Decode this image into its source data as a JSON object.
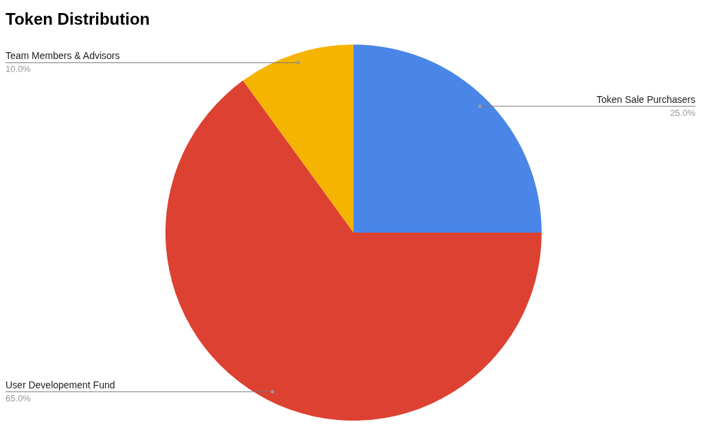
{
  "chart_data": {
    "type": "pie",
    "title": "Token Distribution",
    "categories": [
      "Token Sale Purchasers",
      "User Developement Fund",
      "Team Members & Advisors"
    ],
    "values": [
      25,
      65,
      10
    ],
    "colors": [
      "#4a86e8",
      "#dd4132",
      "#f5b400"
    ],
    "value_labels": [
      "25.0%",
      "65.0%",
      "10.0%"
    ],
    "legend": false
  }
}
